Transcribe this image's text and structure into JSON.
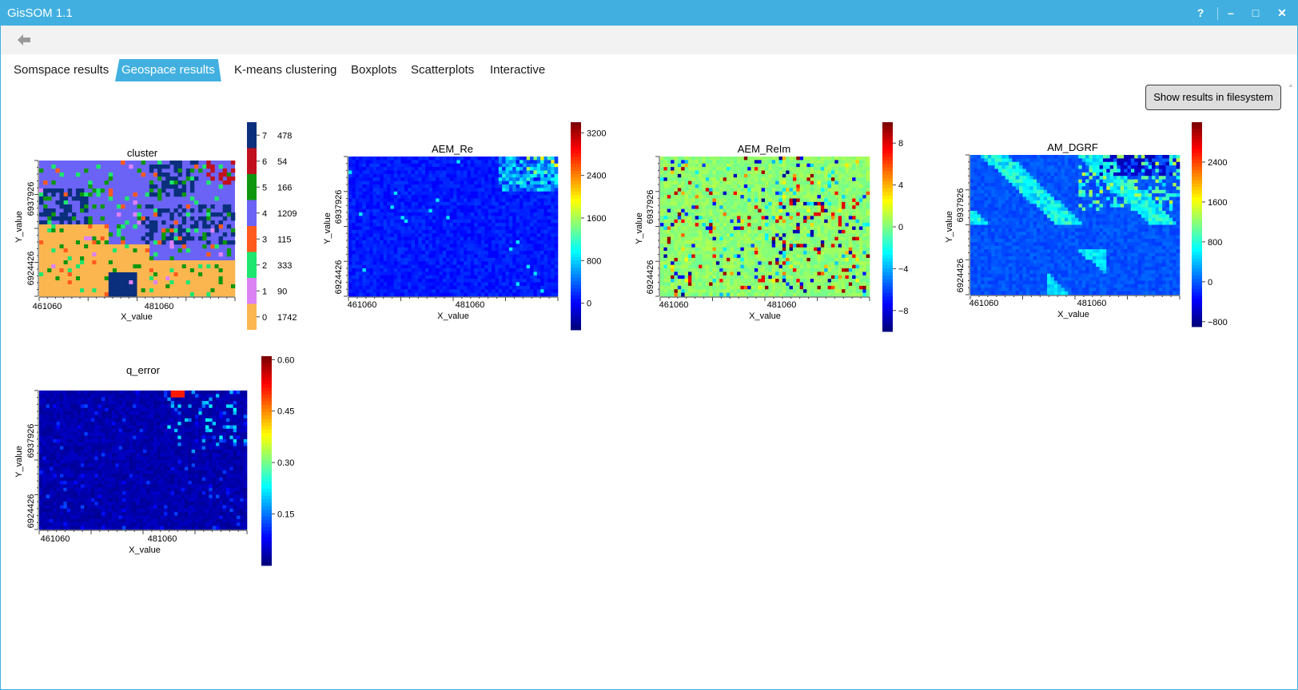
{
  "app": {
    "title": "GisSOM 1.1"
  },
  "window_controls": {
    "help": "?",
    "minimize": "–",
    "maximize": "□",
    "close": "✕"
  },
  "tabs": [
    {
      "label": "Somspace results",
      "active": false
    },
    {
      "label": "Geospace results",
      "active": true
    },
    {
      "label": "K-means clustering",
      "active": false
    },
    {
      "label": "Boxplots",
      "active": false
    },
    {
      "label": "Scatterplots",
      "active": false
    },
    {
      "label": "Interactive",
      "active": false
    }
  ],
  "buttons": {
    "show_results": "Show results in filesystem"
  },
  "icons": {
    "back": "back-arrow-icon",
    "scroll_up": "scroll-up-arrow-icon"
  },
  "colors": {
    "accent": "#41b0e0",
    "toolbar": "#f2f2f2",
    "button_bg": "#dedede"
  },
  "chart_data": [
    {
      "type": "heatmap",
      "title": "cluster",
      "xlabel": "X_value",
      "ylabel": "Y_value",
      "x_ticks": [
        "461060",
        "481060"
      ],
      "y_ticks": [
        "6937926",
        "6924426"
      ],
      "colorbar": "categorical",
      "legend": [
        {
          "cluster": "7",
          "count": "478",
          "color": "#0a2f7d"
        },
        {
          "cluster": "6",
          "count": "54",
          "color": "#c0101e"
        },
        {
          "cluster": "5",
          "count": "166",
          "color": "#0e960e"
        },
        {
          "cluster": "4",
          "count": "1209",
          "color": "#6b63f5"
        },
        {
          "cluster": "3",
          "count": "115",
          "color": "#ff5a1e"
        },
        {
          "cluster": "2",
          "count": "333",
          "color": "#1ee66e"
        },
        {
          "cluster": "1",
          "count": "90",
          "color": "#dc82f5"
        },
        {
          "cluster": "0",
          "count": "1742",
          "color": "#fcb650"
        }
      ]
    },
    {
      "type": "heatmap",
      "title": "AEM_Re",
      "xlabel": "X_value",
      "ylabel": "Y_value",
      "x_ticks": [
        "461060",
        "481060"
      ],
      "y_ticks": [
        "6937926",
        "6924426"
      ],
      "colorbar_ticks": [
        "3200",
        "2400",
        "1600",
        "800",
        "0"
      ],
      "colorbar_range": [
        -500,
        3400
      ],
      "colormap": "jet"
    },
    {
      "type": "heatmap",
      "title": "AEM_ReIm",
      "xlabel": "X_value",
      "ylabel": "Y_value",
      "x_ticks": [
        "461060",
        "481060"
      ],
      "y_ticks": [
        "6937926",
        "6924426"
      ],
      "colorbar_ticks": [
        "8",
        "4",
        "0",
        "−4",
        "−8"
      ],
      "colorbar_range": [
        -10,
        10
      ],
      "colormap": "jet"
    },
    {
      "type": "heatmap",
      "title": "AM_DGRF",
      "xlabel": "X_value",
      "ylabel": "Y_value",
      "x_ticks": [
        "461060",
        "481060"
      ],
      "y_ticks": [
        "6937926",
        "6924426"
      ],
      "colorbar_ticks": [
        "2400",
        "1600",
        "800",
        "0",
        "−800"
      ],
      "colorbar_range": [
        -900,
        3200
      ],
      "colormap": "jet"
    },
    {
      "type": "heatmap",
      "title": "q_error",
      "xlabel": "X_value",
      "ylabel": "Y_value",
      "x_ticks": [
        "461060",
        "481060"
      ],
      "y_ticks": [
        "6937926",
        "6924426"
      ],
      "colorbar_ticks": [
        "0.60",
        "0.45",
        "0.30",
        "0.15"
      ],
      "colorbar_range": [
        0,
        0.61
      ],
      "colormap": "jet"
    }
  ]
}
